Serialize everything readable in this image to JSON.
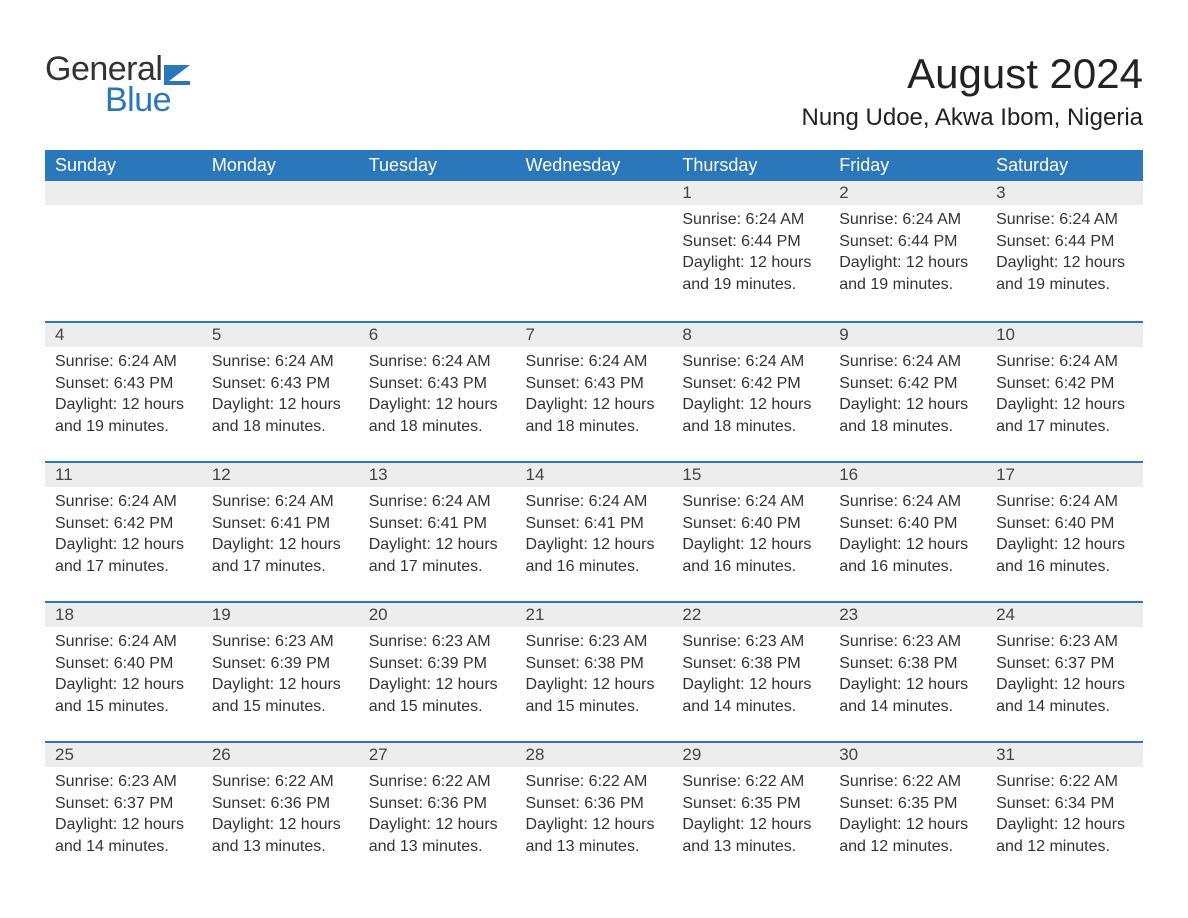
{
  "brand": {
    "general": "General",
    "blue": "Blue"
  },
  "title": "August 2024",
  "location": "Nung Udoe, Akwa Ibom, Nigeria",
  "colors": {
    "header_bg": "#2a77bb",
    "header_text": "#ffffff",
    "daynum_bg": "#ededed",
    "row_divider": "#2a77bb",
    "body_bg": "#ffffff",
    "text": "#333333"
  },
  "typography": {
    "title_fontsize": 42,
    "location_fontsize": 24,
    "header_fontsize": 18,
    "daynum_fontsize": 17,
    "body_fontsize": 16
  },
  "days_of_week": [
    "Sunday",
    "Monday",
    "Tuesday",
    "Wednesday",
    "Thursday",
    "Friday",
    "Saturday"
  ],
  "labels": {
    "sunrise": "Sunrise: ",
    "sunset": "Sunset: ",
    "daylight": "Daylight: "
  },
  "weeks": [
    [
      null,
      null,
      null,
      null,
      {
        "n": "1",
        "sunrise": "6:24 AM",
        "sunset": "6:44 PM",
        "daylight": "12 hours and 19 minutes."
      },
      {
        "n": "2",
        "sunrise": "6:24 AM",
        "sunset": "6:44 PM",
        "daylight": "12 hours and 19 minutes."
      },
      {
        "n": "3",
        "sunrise": "6:24 AM",
        "sunset": "6:44 PM",
        "daylight": "12 hours and 19 minutes."
      }
    ],
    [
      {
        "n": "4",
        "sunrise": "6:24 AM",
        "sunset": "6:43 PM",
        "daylight": "12 hours and 19 minutes."
      },
      {
        "n": "5",
        "sunrise": "6:24 AM",
        "sunset": "6:43 PM",
        "daylight": "12 hours and 18 minutes."
      },
      {
        "n": "6",
        "sunrise": "6:24 AM",
        "sunset": "6:43 PM",
        "daylight": "12 hours and 18 minutes."
      },
      {
        "n": "7",
        "sunrise": "6:24 AM",
        "sunset": "6:43 PM",
        "daylight": "12 hours and 18 minutes."
      },
      {
        "n": "8",
        "sunrise": "6:24 AM",
        "sunset": "6:42 PM",
        "daylight": "12 hours and 18 minutes."
      },
      {
        "n": "9",
        "sunrise": "6:24 AM",
        "sunset": "6:42 PM",
        "daylight": "12 hours and 18 minutes."
      },
      {
        "n": "10",
        "sunrise": "6:24 AM",
        "sunset": "6:42 PM",
        "daylight": "12 hours and 17 minutes."
      }
    ],
    [
      {
        "n": "11",
        "sunrise": "6:24 AM",
        "sunset": "6:42 PM",
        "daylight": "12 hours and 17 minutes."
      },
      {
        "n": "12",
        "sunrise": "6:24 AM",
        "sunset": "6:41 PM",
        "daylight": "12 hours and 17 minutes."
      },
      {
        "n": "13",
        "sunrise": "6:24 AM",
        "sunset": "6:41 PM",
        "daylight": "12 hours and 17 minutes."
      },
      {
        "n": "14",
        "sunrise": "6:24 AM",
        "sunset": "6:41 PM",
        "daylight": "12 hours and 16 minutes."
      },
      {
        "n": "15",
        "sunrise": "6:24 AM",
        "sunset": "6:40 PM",
        "daylight": "12 hours and 16 minutes."
      },
      {
        "n": "16",
        "sunrise": "6:24 AM",
        "sunset": "6:40 PM",
        "daylight": "12 hours and 16 minutes."
      },
      {
        "n": "17",
        "sunrise": "6:24 AM",
        "sunset": "6:40 PM",
        "daylight": "12 hours and 16 minutes."
      }
    ],
    [
      {
        "n": "18",
        "sunrise": "6:24 AM",
        "sunset": "6:40 PM",
        "daylight": "12 hours and 15 minutes."
      },
      {
        "n": "19",
        "sunrise": "6:23 AM",
        "sunset": "6:39 PM",
        "daylight": "12 hours and 15 minutes."
      },
      {
        "n": "20",
        "sunrise": "6:23 AM",
        "sunset": "6:39 PM",
        "daylight": "12 hours and 15 minutes."
      },
      {
        "n": "21",
        "sunrise": "6:23 AM",
        "sunset": "6:38 PM",
        "daylight": "12 hours and 15 minutes."
      },
      {
        "n": "22",
        "sunrise": "6:23 AM",
        "sunset": "6:38 PM",
        "daylight": "12 hours and 14 minutes."
      },
      {
        "n": "23",
        "sunrise": "6:23 AM",
        "sunset": "6:38 PM",
        "daylight": "12 hours and 14 minutes."
      },
      {
        "n": "24",
        "sunrise": "6:23 AM",
        "sunset": "6:37 PM",
        "daylight": "12 hours and 14 minutes."
      }
    ],
    [
      {
        "n": "25",
        "sunrise": "6:23 AM",
        "sunset": "6:37 PM",
        "daylight": "12 hours and 14 minutes."
      },
      {
        "n": "26",
        "sunrise": "6:22 AM",
        "sunset": "6:36 PM",
        "daylight": "12 hours and 13 minutes."
      },
      {
        "n": "27",
        "sunrise": "6:22 AM",
        "sunset": "6:36 PM",
        "daylight": "12 hours and 13 minutes."
      },
      {
        "n": "28",
        "sunrise": "6:22 AM",
        "sunset": "6:36 PM",
        "daylight": "12 hours and 13 minutes."
      },
      {
        "n": "29",
        "sunrise": "6:22 AM",
        "sunset": "6:35 PM",
        "daylight": "12 hours and 13 minutes."
      },
      {
        "n": "30",
        "sunrise": "6:22 AM",
        "sunset": "6:35 PM",
        "daylight": "12 hours and 12 minutes."
      },
      {
        "n": "31",
        "sunrise": "6:22 AM",
        "sunset": "6:34 PM",
        "daylight": "12 hours and 12 minutes."
      }
    ]
  ]
}
